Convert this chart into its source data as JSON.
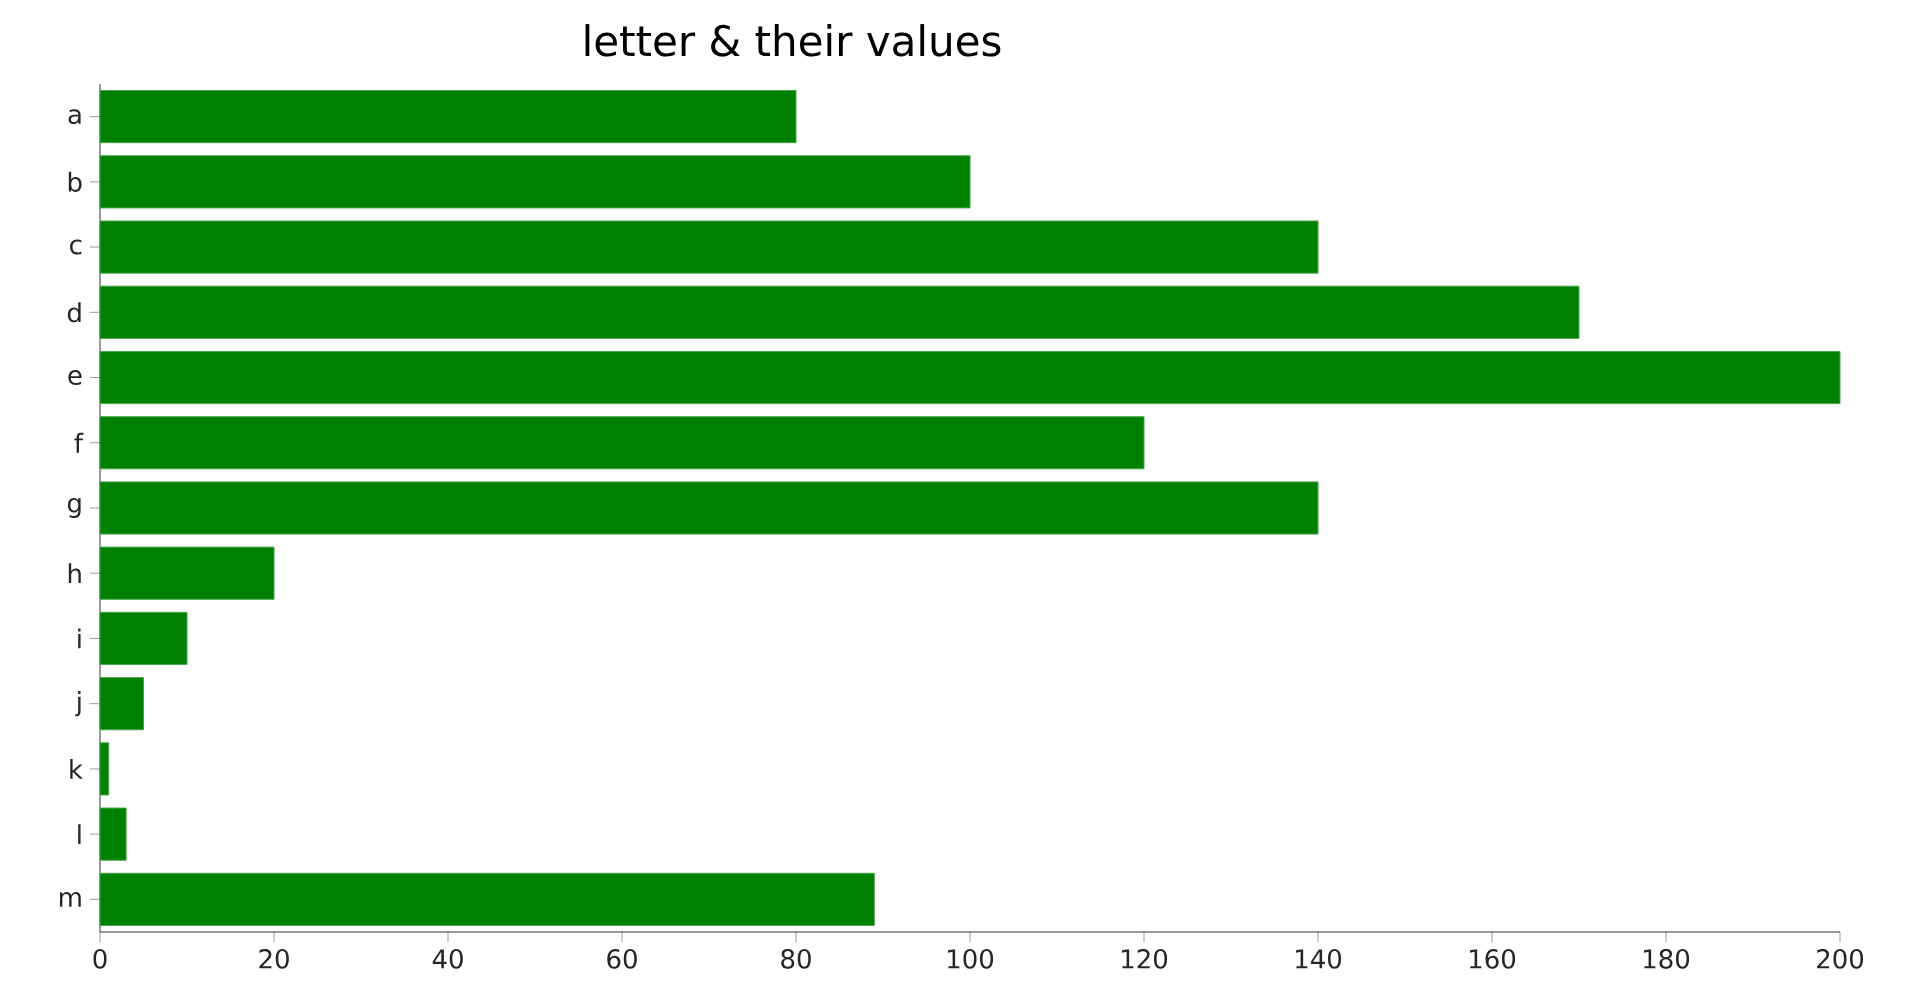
{
  "chart_data": {
    "type": "bar",
    "orientation": "horizontal",
    "title": "letter & their values",
    "categories": [
      "a",
      "b",
      "c",
      "d",
      "e",
      "f",
      "g",
      "h",
      "i",
      "j",
      "k",
      "l",
      "m"
    ],
    "values": [
      80,
      100,
      140,
      170,
      200,
      120,
      140,
      20,
      10,
      5,
      1,
      3,
      89
    ],
    "color": "#008000",
    "xlim": [
      0,
      200
    ],
    "xticks": [
      0,
      20,
      40,
      60,
      80,
      100,
      120,
      140,
      160,
      180,
      200
    ]
  }
}
